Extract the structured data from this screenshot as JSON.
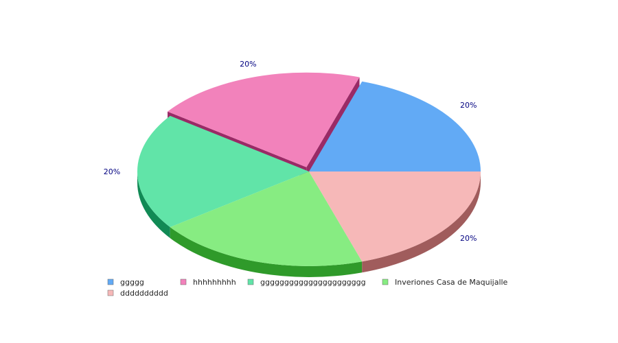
{
  "chart_data": {
    "type": "pie",
    "title": "",
    "style": "3d-exploded",
    "slices": [
      {
        "name": "ggggg",
        "value": 20,
        "label": "20%",
        "color": "#62aaf5",
        "side_color": "#3f77b0"
      },
      {
        "name": "hhhhhhhhh",
        "value": 20,
        "label": "20%",
        "color": "#f282bb",
        "side_color": "#9a2a66",
        "exploded": true
      },
      {
        "name": "gggggggggggggggggggggg",
        "value": 20,
        "label": "20%",
        "color": "#61e4a8",
        "side_color": "#118a55"
      },
      {
        "name": "Inveriones Casa de Maquijalle",
        "value": 20,
        "label": "",
        "color": "#87ec82",
        "side_color": "#2f9a2a"
      },
      {
        "name": "dddddddddd",
        "value": 20,
        "label": "20%",
        "color": "#f6b8b8",
        "side_color": "#a05c5c"
      }
    ],
    "legend_position": "bottom-left"
  }
}
